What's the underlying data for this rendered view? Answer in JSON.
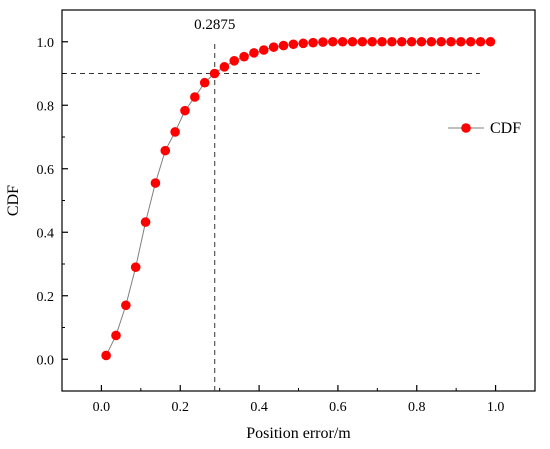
{
  "chart_data": {
    "type": "line",
    "xlabel": "Position error/m",
    "ylabel": "CDF",
    "xlim": [
      -0.1,
      1.1
    ],
    "ylim": [
      -0.1,
      1.1
    ],
    "grid": false,
    "legend_position": "right",
    "x_ticks": [
      "0.0",
      "0.2",
      "0.4",
      "0.6",
      "0.8",
      "1.0"
    ],
    "y_ticks": [
      "0.0",
      "0.2",
      "0.4",
      "0.6",
      "0.8",
      "1.0"
    ],
    "series": [
      {
        "name": "CDF",
        "line_color": "#7f7f7f",
        "marker_color": "#ff0000",
        "x": [
          0.012,
          0.037,
          0.062,
          0.087,
          0.112,
          0.137,
          0.162,
          0.187,
          0.212,
          0.237,
          0.262,
          0.287,
          0.312,
          0.337,
          0.362,
          0.387,
          0.412,
          0.437,
          0.462,
          0.487,
          0.512,
          0.537,
          0.562,
          0.587,
          0.612,
          0.637,
          0.662,
          0.687,
          0.712,
          0.737,
          0.762,
          0.787,
          0.812,
          0.837,
          0.862,
          0.887,
          0.912,
          0.937,
          0.962,
          0.987
        ],
        "y": [
          0.012,
          0.075,
          0.17,
          0.29,
          0.432,
          0.555,
          0.657,
          0.716,
          0.783,
          0.826,
          0.871,
          0.9,
          0.921,
          0.94,
          0.953,
          0.965,
          0.974,
          0.983,
          0.988,
          0.992,
          0.995,
          0.997,
          0.999,
          1.0,
          1.0,
          1.0,
          1.0,
          1.0,
          1.0,
          1.0,
          1.0,
          1.0,
          1.0,
          1.0,
          1.0,
          1.0,
          1.0,
          1.0,
          1.0,
          1.0
        ]
      }
    ],
    "reference_lines": {
      "horizontal_y": 0.9,
      "horizontal_x_range": [
        -0.1,
        0.96
      ],
      "vertical_x": 0.2875,
      "vertical_y_range": [
        -0.1,
        1.0
      ]
    },
    "annotations": [
      {
        "text": "0.2875",
        "x": 0.2875,
        "y": 1.04
      }
    ]
  }
}
